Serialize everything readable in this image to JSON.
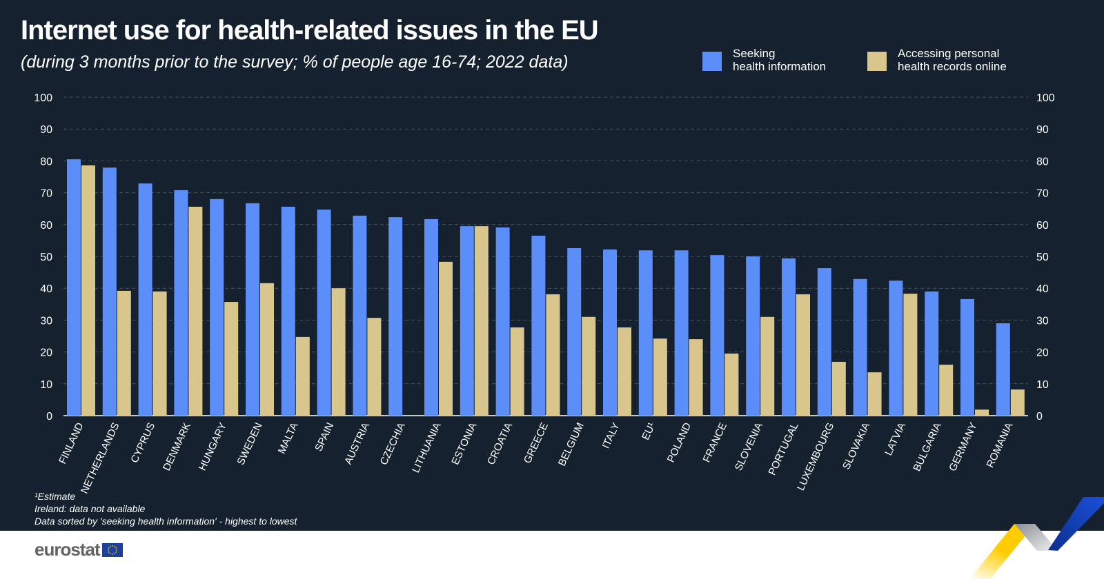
{
  "header": {
    "title": "Internet use for health-related issues in the EU",
    "subtitle": "(during 3 months prior to the survey; % of people age 16-74; 2022 data)"
  },
  "notes": [
    "¹Estimate",
    "Ireland: data not available",
    "Data sorted by 'seeking health information' - highest to lowest"
  ],
  "logo": "eurostat",
  "colors": {
    "background": "#15212f",
    "seeking": "#5b8ef8",
    "accessing": "#d8c68c"
  },
  "chart_data": {
    "type": "bar",
    "title": "Internet use for health-related issues in the EU",
    "ylim": [
      0,
      100
    ],
    "yticks": [
      0,
      10,
      20,
      30,
      40,
      50,
      60,
      70,
      80,
      90,
      100
    ],
    "grid": true,
    "legend_placement": "top-right",
    "categories": [
      "FINLAND",
      "NETHERLANDS",
      "CYPRUS",
      "DENMARK",
      "HUNGARY",
      "SWEDEN",
      "MALTA",
      "SPAIN",
      "AUSTRIA",
      "CZECHIA",
      "LITHUANIA",
      "ESTONIA",
      "CROATIA",
      "GREECE",
      "BELGIUM",
      "ITALY",
      "EU¹",
      "POLAND",
      "FRANCE",
      "SLOVENIA",
      "PORTUGAL",
      "LUXEMBOURG",
      "SLOVAKIA",
      "LATVIA",
      "BULGARIA",
      "GERMANY",
      "ROMANIA"
    ],
    "series": [
      {
        "name": "Seeking health information",
        "values": [
          80.5,
          77.9,
          72.9,
          70.8,
          68.0,
          66.7,
          65.6,
          64.7,
          62.8,
          62.3,
          61.7,
          59.5,
          59.1,
          56.5,
          52.6,
          52.2,
          51.9,
          51.9,
          50.4,
          50.0,
          49.4,
          46.3,
          42.9,
          42.4,
          39.0,
          36.6,
          29.0
        ]
      },
      {
        "name": "Accessing personal health records online",
        "values": [
          78.6,
          39.2,
          39.0,
          65.6,
          35.7,
          41.6,
          24.7,
          40.0,
          30.7,
          null,
          48.3,
          59.5,
          27.7,
          38.1,
          31.0,
          27.7,
          24.2,
          24.0,
          19.5,
          31.0,
          38.1,
          16.9,
          13.6,
          38.3,
          16.0,
          1.9,
          8.2
        ]
      }
    ],
    "legend": [
      {
        "line1": "Seeking",
        "line2": "health information"
      },
      {
        "line1": "Accessing personal",
        "line2": "health records online"
      }
    ]
  }
}
